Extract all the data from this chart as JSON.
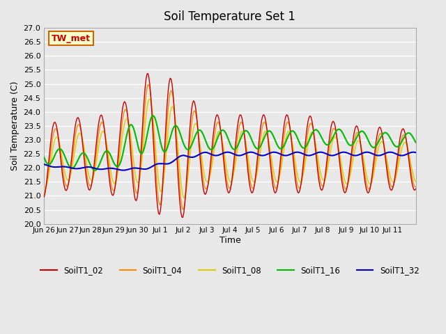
{
  "title": "Soil Temperature Set 1",
  "xlabel": "Time",
  "ylabel": "Soil Temperature (C)",
  "ylim": [
    20.0,
    27.0
  ],
  "yticks": [
    20.0,
    20.5,
    21.0,
    21.5,
    22.0,
    22.5,
    23.0,
    23.5,
    24.0,
    24.5,
    25.0,
    25.5,
    26.0,
    26.5,
    27.0
  ],
  "xtick_labels": [
    "Jun 26",
    "Jun 27",
    "Jun 28",
    "Jun 29",
    "Jun 30",
    "Jul 1",
    "Jul 2",
    "Jul 3",
    "Jul 4",
    "Jul 5",
    "Jul 6",
    "Jul 7",
    "Jul 8",
    "Jul 9",
    "Jul 10",
    "Jul 11"
  ],
  "annotation_text": "TW_met",
  "annotation_bg": "#ffffcc",
  "annotation_border": "#cc6600",
  "annotation_text_color": "#cc0000",
  "series_colors": {
    "SoilT1_02": "#cc0000",
    "SoilT1_04": "#ff8800",
    "SoilT1_08": "#ddcc00",
    "SoilT1_16": "#00bb00",
    "SoilT1_32": "#0000cc"
  },
  "background_color": "#e8e8e8",
  "plot_bg": "#e8e8e8",
  "grid_color": "#ffffff",
  "legend_colors": [
    "#cc0000",
    "#ff8800",
    "#ddcc00",
    "#00bb00",
    "#0000cc"
  ],
  "legend_labels": [
    "SoilT1_02",
    "SoilT1_04",
    "SoilT1_08",
    "SoilT1_16",
    "SoilT1_32"
  ]
}
